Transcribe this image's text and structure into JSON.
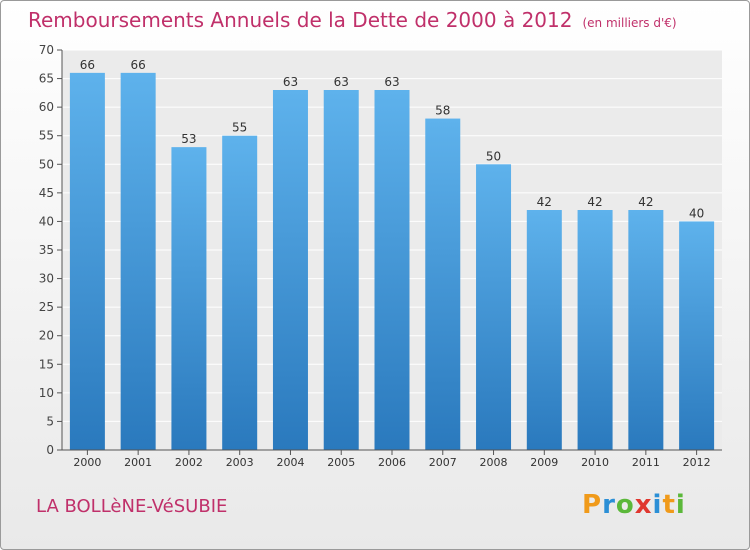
{
  "chart_data": {
    "type": "bar",
    "title": "Remboursements Annuels de la Dette de 2000 à 2012",
    "subtitle": "(en milliers d'€)",
    "categories": [
      "2000",
      "2001",
      "2002",
      "2003",
      "2004",
      "2005",
      "2006",
      "2007",
      "2008",
      "2009",
      "2010",
      "2011",
      "2012"
    ],
    "values": [
      66,
      66,
      53,
      55,
      63,
      63,
      63,
      58,
      50,
      42,
      42,
      42,
      40
    ],
    "ylim": [
      0,
      70
    ],
    "yticks": [
      0,
      5,
      10,
      15,
      20,
      25,
      30,
      35,
      40,
      45,
      50,
      55,
      60,
      65,
      70
    ],
    "grid": true,
    "bar_color": "#3a8fd6"
  },
  "place": "LA BOLLèNE-VéSUBIE",
  "logo": {
    "p": "P",
    "r": "r",
    "o": "o",
    "x": "x",
    "i": "i",
    "t": "t",
    "i2": "i"
  }
}
